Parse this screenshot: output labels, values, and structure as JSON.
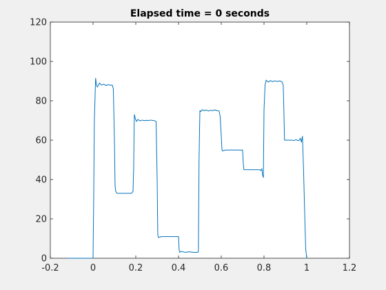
{
  "chart_data": {
    "type": "line",
    "title": "Elapsed time = 0 seconds",
    "xlabel": "",
    "ylabel": "",
    "xlim": [
      -0.2,
      1.2
    ],
    "ylim": [
      0,
      120
    ],
    "xticks": [
      -0.2,
      0,
      0.2,
      0.4,
      0.6,
      0.8,
      1,
      1.2
    ],
    "xtick_labels": [
      "-0.2",
      "0",
      "0.2",
      "0.4",
      "0.6",
      "0.8",
      "1",
      "1.2"
    ],
    "yticks": [
      0,
      20,
      40,
      60,
      80,
      100,
      120
    ],
    "ytick_labels": [
      "0",
      "20",
      "40",
      "60",
      "80",
      "100",
      "120"
    ],
    "grid": false,
    "series": [
      {
        "color": "#0072bd",
        "x": [
          -0.12,
          0.0,
          0.003,
          0.006,
          0.012,
          0.016,
          0.02,
          0.03,
          0.04,
          0.05,
          0.06,
          0.07,
          0.08,
          0.09,
          0.095,
          0.1,
          0.103,
          0.106,
          0.112,
          0.12,
          0.14,
          0.16,
          0.18,
          0.187,
          0.19,
          0.193,
          0.198,
          0.203,
          0.21,
          0.22,
          0.23,
          0.24,
          0.25,
          0.26,
          0.27,
          0.28,
          0.29,
          0.295,
          0.3,
          0.303,
          0.306,
          0.32,
          0.34,
          0.36,
          0.38,
          0.39,
          0.4,
          0.403,
          0.406,
          0.412,
          0.43,
          0.45,
          0.47,
          0.485,
          0.49,
          0.493,
          0.496,
          0.5,
          0.505,
          0.51,
          0.52,
          0.53,
          0.54,
          0.55,
          0.56,
          0.57,
          0.58,
          0.59,
          0.595,
          0.6,
          0.603,
          0.606,
          0.62,
          0.64,
          0.66,
          0.68,
          0.69,
          0.7,
          0.703,
          0.706,
          0.72,
          0.74,
          0.76,
          0.77,
          0.78,
          0.785,
          0.79,
          0.794,
          0.797,
          0.8,
          0.805,
          0.81,
          0.82,
          0.83,
          0.84,
          0.85,
          0.86,
          0.87,
          0.88,
          0.885,
          0.89,
          0.893,
          0.896,
          0.91,
          0.93,
          0.94,
          0.95,
          0.96,
          0.965,
          0.97,
          0.975,
          0.98,
          0.985,
          0.99,
          0.995,
          1.0,
          1.003
        ],
        "y": [
          0,
          0,
          30,
          70,
          91.5,
          88,
          87,
          89,
          88,
          88.5,
          87.8,
          88.2,
          88,
          88,
          86,
          60,
          37,
          34,
          33,
          33,
          33,
          33,
          33,
          34,
          45,
          73,
          71,
          69.5,
          70.5,
          69.8,
          70.2,
          69.9,
          70.1,
          70,
          70.2,
          70,
          69.8,
          69.5,
          40,
          12,
          10.5,
          11,
          11,
          11,
          11,
          11,
          11,
          4,
          3,
          3.5,
          3,
          3.3,
          3,
          3,
          3,
          3.5,
          50,
          75,
          74.5,
          75.5,
          75,
          75.3,
          74.8,
          75.2,
          75,
          75.4,
          75,
          74.8,
          72,
          62,
          55.5,
          54.5,
          55,
          55,
          55,
          55,
          55,
          55,
          48,
          45,
          45,
          45,
          45,
          45,
          45,
          44.5,
          45.5,
          42,
          41,
          75,
          88,
          90.5,
          89.5,
          90.3,
          89.7,
          90.2,
          89.8,
          90.1,
          89.9,
          89.5,
          88,
          75,
          60,
          60,
          60,
          59.8,
          60.3,
          59.7,
          60,
          61,
          59,
          62,
          45,
          25,
          5,
          0,
          0
        ]
      }
    ]
  }
}
